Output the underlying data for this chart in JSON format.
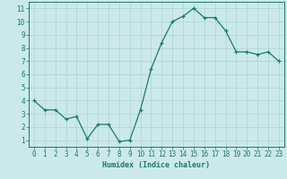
{
  "x": [
    0,
    1,
    2,
    3,
    4,
    5,
    6,
    7,
    8,
    9,
    10,
    11,
    12,
    13,
    14,
    15,
    16,
    17,
    18,
    19,
    20,
    21,
    22,
    23
  ],
  "y": [
    4.0,
    3.3,
    3.3,
    2.6,
    2.8,
    1.1,
    2.2,
    2.2,
    0.9,
    1.0,
    3.3,
    6.4,
    8.4,
    10.0,
    10.4,
    11.0,
    10.3,
    10.3,
    9.3,
    7.7,
    7.7,
    7.5,
    7.7,
    7.0
  ],
  "line_color": "#1a7a6e",
  "marker": "+",
  "marker_size": 3,
  "bg_color": "#cce9e9",
  "grid_color": "#aad4d4",
  "xlabel": "Humidex (Indice chaleur)",
  "xlim": [
    -0.5,
    23.5
  ],
  "ylim": [
    0.5,
    11.5
  ],
  "yticks": [
    1,
    2,
    3,
    4,
    5,
    6,
    7,
    8,
    9,
    10,
    11
  ],
  "xticks": [
    0,
    1,
    2,
    3,
    4,
    5,
    6,
    7,
    8,
    9,
    10,
    11,
    12,
    13,
    14,
    15,
    16,
    17,
    18,
    19,
    20,
    21,
    22,
    23
  ],
  "xlabel_fontsize": 6,
  "tick_fontsize": 5.5
}
